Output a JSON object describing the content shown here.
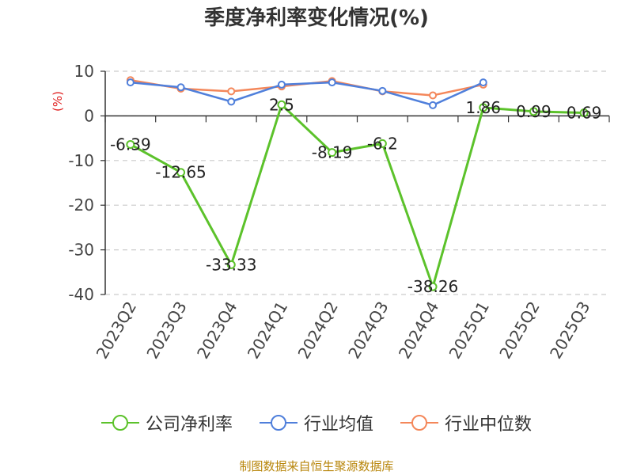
{
  "chart_data": {
    "type": "line",
    "title": "季度净利率变化情况(%)",
    "ylabel": "(%)",
    "xlabel": "",
    "categories": [
      "2023Q2",
      "2023Q3",
      "2023Q4",
      "2024Q1",
      "2024Q2",
      "2024Q3",
      "2024Q4",
      "2025Q1",
      "2025Q2",
      "2025Q3"
    ],
    "ylim": [
      -40,
      10
    ],
    "yticks": [
      "10",
      "0",
      "-10",
      "-20",
      "-30",
      "-40"
    ],
    "grid": true,
    "legend_position": "bottom",
    "series": [
      {
        "name": "公司净利率",
        "color": "#5cc22b",
        "values": [
          -6.39,
          -12.65,
          -33.33,
          2.5,
          -8.19,
          -6.2,
          -38.26,
          1.86,
          0.99,
          0.69
        ],
        "labels": [
          "-6.39",
          "-12.65",
          "-33.33",
          "2.5",
          "-8.19",
          "-6.2",
          "-38.26",
          "1.86",
          "0.99",
          "0.69"
        ]
      },
      {
        "name": "行业均值",
        "color": "#4f7fdb",
        "values": [
          7.5,
          6.4,
          3.2,
          7.0,
          7.5,
          5.6,
          2.4,
          7.5,
          null,
          null
        ]
      },
      {
        "name": "行业中位数",
        "color": "#f4875a",
        "values": [
          8.0,
          6.1,
          5.5,
          6.6,
          7.8,
          5.5,
          4.6,
          7.0,
          null,
          null
        ]
      }
    ]
  },
  "footer": "制图数据来自恒生聚源数据库"
}
